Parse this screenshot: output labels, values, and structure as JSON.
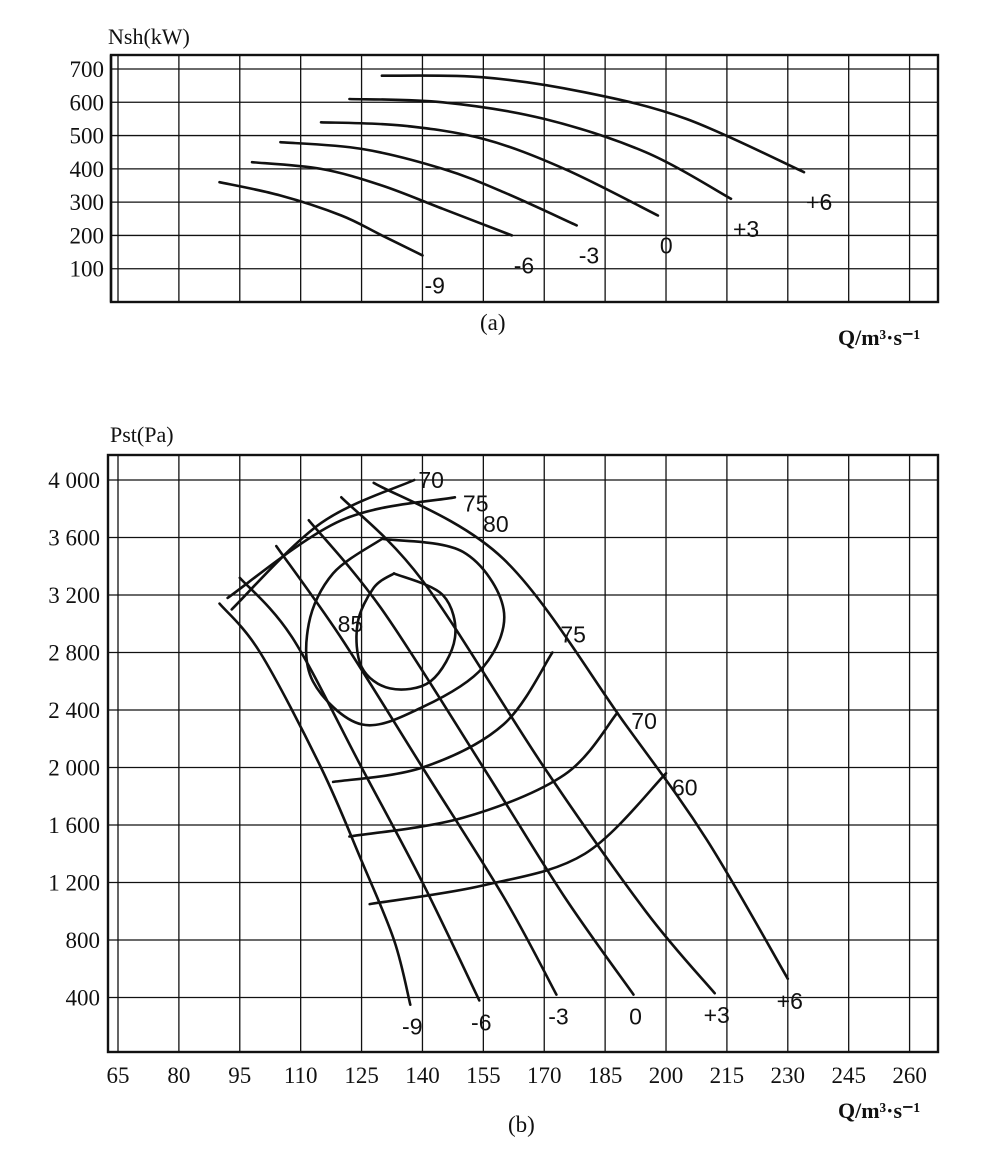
{
  "chart_data": [
    {
      "type": "line",
      "panel_label": "(a)",
      "ylabel": "Nsh(kW)",
      "xlabel": "Q/m³·s⁻¹",
      "ylim": [
        0,
        700
      ],
      "yticks": [
        "100",
        "200",
        "300",
        "400",
        "500",
        "600",
        "700"
      ],
      "xlim": [
        65,
        267
      ],
      "grid": true,
      "series": [
        {
          "name": "-9",
          "points": [
            [
              90,
              360
            ],
            [
              105,
              320
            ],
            [
              120,
              260
            ],
            [
              130,
              200
            ],
            [
              140,
              140
            ]
          ]
        },
        {
          "name": "-6",
          "points": [
            [
              98,
              420
            ],
            [
              115,
              400
            ],
            [
              130,
              350
            ],
            [
              145,
              280
            ],
            [
              162,
              200
            ]
          ]
        },
        {
          "name": "-3",
          "points": [
            [
              105,
              480
            ],
            [
              125,
              460
            ],
            [
              145,
              400
            ],
            [
              160,
              330
            ],
            [
              178,
              230
            ]
          ]
        },
        {
          "name": "0",
          "points": [
            [
              115,
              540
            ],
            [
              135,
              530
            ],
            [
              155,
              490
            ],
            [
              175,
              400
            ],
            [
              198,
              260
            ]
          ]
        },
        {
          "name": "+3",
          "points": [
            [
              122,
              610
            ],
            [
              145,
              600
            ],
            [
              170,
              550
            ],
            [
              195,
              450
            ],
            [
              216,
              310
            ]
          ]
        },
        {
          "name": "+6",
          "points": [
            [
              130,
              680
            ],
            [
              155,
              675
            ],
            [
              180,
              630
            ],
            [
              205,
              550
            ],
            [
              234,
              390
            ]
          ]
        }
      ]
    },
    {
      "type": "line",
      "panel_label": "(b)",
      "ylabel": "Pst(Pa)",
      "xlabel": "Q/m³·s⁻¹",
      "xticks": [
        "65",
        "80",
        "95",
        "110",
        "125",
        "140",
        "155",
        "170",
        "185",
        "200",
        "215",
        "230",
        "245",
        "260"
      ],
      "yticks": [
        "400",
        "800",
        "1 200",
        "1 600",
        "2 000",
        "2 400",
        "2 800",
        "3 200",
        "3 600",
        "4 000"
      ],
      "xlim": [
        65,
        267
      ],
      "ylim": [
        0,
        4170
      ],
      "grid": true,
      "series": [
        {
          "name": "-9",
          "points": [
            [
              90,
              3140
            ],
            [
              100,
              2800
            ],
            [
              115,
              2000
            ],
            [
              125,
              1350
            ],
            [
              133,
              800
            ],
            [
              137,
              350
            ]
          ]
        },
        {
          "name": "-6",
          "points": [
            [
              95,
              3320
            ],
            [
              108,
              2900
            ],
            [
              125,
              2000
            ],
            [
              140,
              1200
            ],
            [
              154,
              380
            ]
          ]
        },
        {
          "name": "-3",
          "points": [
            [
              104,
              3540
            ],
            [
              120,
              2900
            ],
            [
              140,
              2000
            ],
            [
              160,
              1100
            ],
            [
              173,
              420
            ]
          ]
        },
        {
          "name": "0",
          "points": [
            [
              112,
              3720
            ],
            [
              130,
              3100
            ],
            [
              155,
              2000
            ],
            [
              175,
              1100
            ],
            [
              192,
              420
            ]
          ]
        },
        {
          "name": "+3",
          "points": [
            [
              120,
              3880
            ],
            [
              140,
              3300
            ],
            [
              170,
              2000
            ],
            [
              195,
              1000
            ],
            [
              212,
              430
            ]
          ]
        },
        {
          "name": "+6",
          "points": [
            [
              128,
              3980
            ],
            [
              160,
              3450
            ],
            [
              190,
              2300
            ],
            [
              210,
              1500
            ],
            [
              230,
              530
            ]
          ]
        }
      ],
      "efficiency_contours": [
        {
          "name": "85",
          "points": [
            [
              133,
              3350
            ],
            [
              145,
              3200
            ],
            [
              148,
              2900
            ],
            [
              142,
              2600
            ],
            [
              132,
              2550
            ],
            [
              125,
              2700
            ],
            [
              124,
              3000
            ],
            [
              128,
              3250
            ],
            [
              133,
              3350
            ]
          ]
        },
        {
          "name": "80",
          "points": [
            [
              130,
              3590
            ],
            [
              150,
              3500
            ],
            [
              160,
              3100
            ],
            [
              155,
              2700
            ],
            [
              140,
              2420
            ],
            [
              125,
              2300
            ],
            [
              113,
              2600
            ],
            [
              112,
              3000
            ],
            [
              118,
              3350
            ],
            [
              130,
              3590
            ]
          ]
        },
        {
          "name": "75",
          "points": [
            [
              92,
              3180
            ],
            [
              120,
              3720
            ],
            [
              148,
              3880
            ]
          ]
        },
        {
          "name": "75",
          "points": [
            [
              118,
              1900
            ],
            [
              140,
              2000
            ],
            [
              160,
              2300
            ],
            [
              172,
              2800
            ]
          ]
        },
        {
          "name": "70",
          "points": [
            [
              93,
              3100
            ],
            [
              115,
              3700
            ],
            [
              138,
              4000
            ]
          ]
        },
        {
          "name": "70",
          "points": [
            [
              122,
              1520
            ],
            [
              150,
              1650
            ],
            [
              175,
              1950
            ],
            [
              188,
              2380
            ]
          ]
        },
        {
          "name": "60",
          "points": [
            [
              127,
              1050
            ],
            [
              155,
              1180
            ],
            [
              180,
              1400
            ],
            [
              200,
              1960
            ]
          ]
        }
      ]
    }
  ]
}
